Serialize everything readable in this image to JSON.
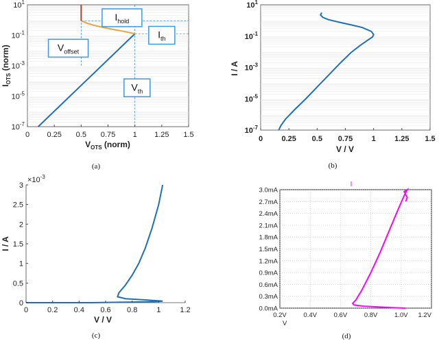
{
  "chart_data": [
    {
      "id": "a",
      "type": "line",
      "caption": "(a)",
      "xscale": "linear",
      "yscale": "log",
      "xlim": [
        0,
        1.5
      ],
      "ylim_exp": [
        -7,
        1
      ],
      "x_ticks": [
        "0",
        "0.25",
        "0.5",
        "0.75",
        "1",
        "1.25",
        "1.5"
      ],
      "x_tick_values": [
        0,
        0.25,
        0.5,
        0.75,
        1,
        1.25,
        1.5
      ],
      "y_tick_exps": [
        -7,
        -5,
        -3,
        -1,
        1
      ],
      "xlabel_main": "V",
      "xlabel_sub": "OTS",
      "xlabel_tail": " (norm)",
      "ylabel_main": "I",
      "ylabel_sub": "OTS",
      "ylabel_tail": " (norm)",
      "series": [
        {
          "color": "#1f6fb5",
          "points": [
            [
              0.1,
              -7
            ],
            [
              1.0,
              -0.9
            ]
          ]
        },
        {
          "color": "#e8a33a",
          "points": [
            [
              1.0,
              -0.9
            ],
            [
              0.9,
              -0.75
            ],
            [
              0.75,
              -0.55
            ],
            [
              0.62,
              -0.35
            ],
            [
              0.55,
              -0.2
            ],
            [
              0.5,
              -0.05
            ]
          ]
        },
        {
          "color": "#c0392b",
          "points": [
            [
              0.5,
              -0.05
            ],
            [
              0.5,
              1
            ]
          ]
        }
      ],
      "guides": [
        {
          "points": [
            [
              0.5,
              -3
            ],
            [
              0.5,
              1
            ]
          ]
        },
        {
          "points": [
            [
              0.5,
              -0.05
            ],
            [
              1.5,
              -0.05
            ]
          ]
        },
        {
          "points": [
            [
              1.0,
              -7
            ],
            [
              1.0,
              1
            ]
          ]
        },
        {
          "points": [
            [
              1.0,
              -0.9
            ],
            [
              1.5,
              -0.9
            ]
          ]
        }
      ],
      "annotations": [
        {
          "main": "I",
          "sub": "hold",
          "x": 0.88,
          "y": 0.15
        },
        {
          "main": "I",
          "sub": "th",
          "x": 1.25,
          "y": -1.0
        },
        {
          "main": "V",
          "sub": "offset",
          "x": 0.38,
          "y": -1.85
        },
        {
          "main": "V",
          "sub": "th",
          "x": 1.02,
          "y": -4.45
        }
      ]
    },
    {
      "id": "b",
      "type": "line",
      "caption": "(b)",
      "xscale": "linear",
      "yscale": "log",
      "xlim": [
        0,
        1.5
      ],
      "ylim_exp": [
        -7,
        1
      ],
      "x_ticks": [
        "0",
        "0.25",
        "0.5",
        "0.75",
        "1",
        "1.25",
        "1.5"
      ],
      "x_tick_values": [
        0,
        0.25,
        0.5,
        0.75,
        1,
        1.25,
        1.5
      ],
      "y_tick_exps": [
        -7,
        -5,
        -3,
        -1,
        1
      ],
      "xlabel": "V / V",
      "ylabel": "I / A",
      "series": [
        {
          "color": "#1f6fb5",
          "points": [
            [
              0.16,
              -7
            ],
            [
              0.18,
              -6.7
            ],
            [
              0.22,
              -6.3
            ],
            [
              0.3,
              -5.7
            ],
            [
              0.4,
              -5.0
            ],
            [
              0.5,
              -4.25
            ],
            [
              0.6,
              -3.5
            ],
            [
              0.7,
              -2.75
            ],
            [
              0.8,
              -2.05
            ],
            [
              0.88,
              -1.6
            ],
            [
              0.95,
              -1.25
            ],
            [
              0.99,
              -1.05
            ],
            [
              1.0,
              -0.9
            ],
            [
              0.98,
              -0.7
            ],
            [
              0.9,
              -0.45
            ],
            [
              0.8,
              -0.28
            ],
            [
              0.7,
              -0.12
            ],
            [
              0.6,
              0.05
            ],
            [
              0.55,
              0.2
            ],
            [
              0.53,
              0.35
            ],
            [
              0.54,
              0.5
            ]
          ]
        }
      ]
    },
    {
      "id": "c",
      "type": "line",
      "caption": "(c)",
      "xscale": "linear",
      "yscale": "linear",
      "xlim": [
        0,
        1.2
      ],
      "ylim": [
        0,
        3
      ],
      "x_ticks": [
        "0",
        "0.2",
        "0.4",
        "0.6",
        "0.8",
        "1",
        "1.2"
      ],
      "x_tick_values": [
        0,
        0.2,
        0.4,
        0.6,
        0.8,
        1,
        1.2
      ],
      "y_ticks": [
        "0",
        "0.5",
        "1",
        "1.5",
        "2",
        "2.5",
        "3"
      ],
      "y_tick_values": [
        0,
        0.5,
        1,
        1.5,
        2,
        2.5,
        3
      ],
      "y_multiplier": "×10",
      "y_multiplier_exp": "-3",
      "xlabel": "V / V",
      "ylabel": "I / A",
      "series": [
        {
          "color": "#1f6fb5",
          "points": [
            [
              0,
              0.0
            ],
            [
              0.5,
              0.0
            ],
            [
              0.7,
              0.01
            ],
            [
              0.9,
              0.02
            ],
            [
              1.0,
              0.03
            ],
            [
              1.03,
              0.04
            ],
            [
              0.9,
              0.07
            ],
            [
              0.75,
              0.1
            ],
            [
              0.69,
              0.15
            ],
            [
              0.7,
              0.25
            ],
            [
              0.75,
              0.45
            ],
            [
              0.8,
              0.7
            ],
            [
              0.85,
              1.0
            ],
            [
              0.9,
              1.4
            ],
            [
              0.95,
              1.9
            ],
            [
              1.0,
              2.5
            ],
            [
              1.03,
              3.0
            ]
          ]
        }
      ]
    },
    {
      "id": "d",
      "type": "line",
      "caption": "(d)",
      "xscale": "linear",
      "yscale": "linear",
      "xlim": [
        0.2,
        1.2
      ],
      "ylim": [
        0,
        3
      ],
      "x_ticks": [
        "0.2V",
        "0.4V",
        "0.6V",
        "0.8V",
        "1.0V",
        "1.2V"
      ],
      "x_tick_values": [
        0.2,
        0.4,
        0.6,
        0.8,
        1.0,
        1.2
      ],
      "y_ticks": [
        "0.0mA",
        "0.3mA",
        "0.6mA",
        "0.9mA",
        "1.2mA",
        "1.5mA",
        "1.8mA",
        "2.1mA",
        "2.4mA",
        "2.7mA",
        "3.0mA"
      ],
      "y_tick_values": [
        0,
        0.3,
        0.6,
        0.9,
        1.2,
        1.5,
        1.8,
        2.1,
        2.4,
        2.7,
        3.0
      ],
      "xlabel": "V",
      "legend_glyph": "I",
      "series": [
        {
          "color": "#ff00ff",
          "points": [
            [
              1.03,
              0.0
            ],
            [
              0.95,
              0.01
            ],
            [
              0.85,
              0.03
            ],
            [
              0.75,
              0.05
            ],
            [
              0.69,
              0.08
            ],
            [
              0.68,
              0.12
            ],
            [
              0.7,
              0.2
            ],
            [
              0.74,
              0.45
            ],
            [
              0.8,
              0.9
            ],
            [
              0.86,
              1.4
            ],
            [
              0.92,
              1.95
            ],
            [
              0.98,
              2.5
            ],
            [
              1.02,
              2.85
            ],
            [
              1.04,
              3.0
            ],
            [
              1.02,
              2.95
            ],
            [
              1.04,
              2.8
            ],
            [
              1.03,
              2.7
            ]
          ]
        }
      ]
    }
  ]
}
